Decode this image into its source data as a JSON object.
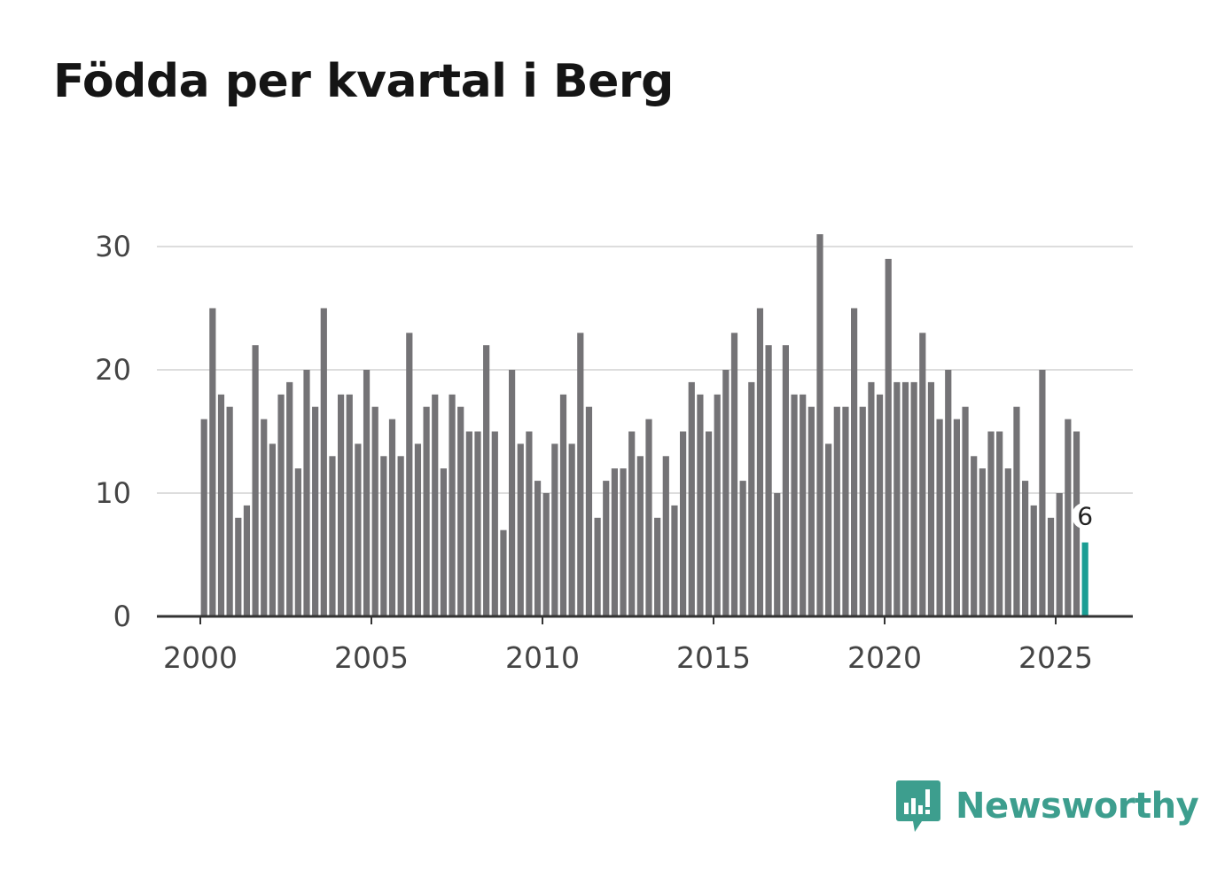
{
  "title": "Födda per kvartal i Berg",
  "brand": {
    "name": "Newsworthy",
    "color": "#3d9e8e"
  },
  "colors": {
    "bar": "#747376",
    "highlight": "#1a9d93",
    "grid": "#dddddd",
    "axis": "#333333"
  },
  "chart_data": {
    "type": "bar",
    "title": "Födda per kvartal i Berg",
    "xlabel": "",
    "ylabel": "",
    "ylim": [
      0,
      30
    ],
    "yticks": [
      0,
      10,
      20,
      30
    ],
    "xticks": [
      2000,
      2005,
      2010,
      2015,
      2020,
      2025
    ],
    "x_start_year": 2000,
    "periods_per_year": 4,
    "grid": true,
    "highlight_label": "6",
    "values": [
      16,
      25,
      18,
      17,
      8,
      9,
      22,
      16,
      14,
      18,
      19,
      12,
      20,
      17,
      25,
      13,
      18,
      18,
      14,
      20,
      17,
      13,
      16,
      13,
      23,
      14,
      17,
      18,
      12,
      18,
      17,
      15,
      15,
      22,
      15,
      7,
      20,
      14,
      15,
      11,
      10,
      14,
      18,
      14,
      23,
      17,
      8,
      11,
      12,
      12,
      15,
      13,
      16,
      8,
      13,
      9,
      15,
      19,
      18,
      15,
      18,
      20,
      23,
      11,
      19,
      25,
      22,
      10,
      22,
      18,
      18,
      17,
      31,
      14,
      17,
      17,
      25,
      17,
      19,
      18,
      29,
      19,
      19,
      19,
      23,
      19,
      16,
      20,
      16,
      17,
      13,
      12,
      15,
      15,
      12,
      17,
      11,
      9,
      20,
      8,
      10,
      16,
      15,
      6
    ]
  }
}
